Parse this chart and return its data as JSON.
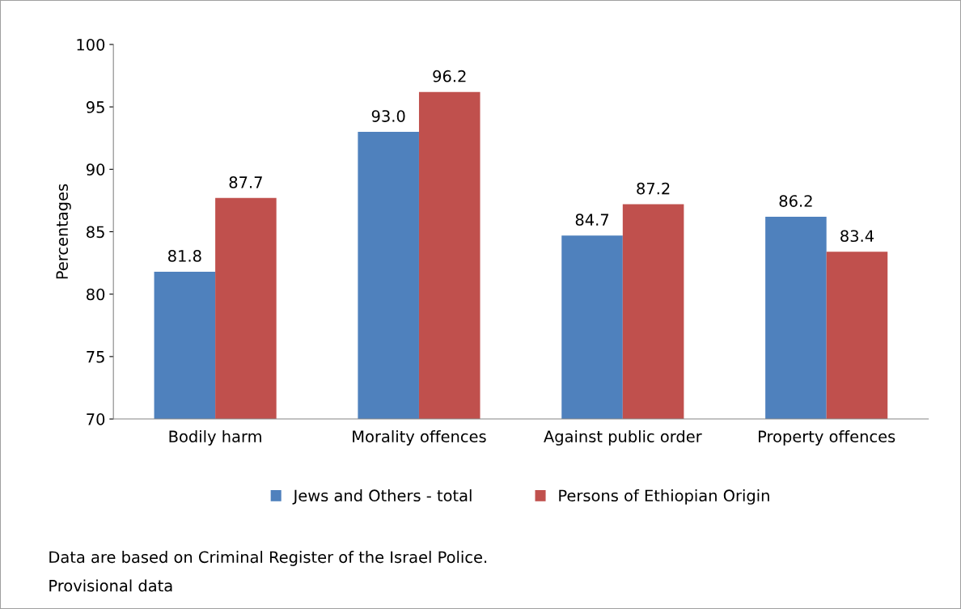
{
  "chart_data": {
    "type": "bar",
    "ylabel": "Percentages",
    "categories": [
      "Bodily harm",
      "Morality offences",
      "Against public order",
      "Property offences"
    ],
    "series": [
      {
        "name": "Jews and Others - total",
        "color": "#4f81bd",
        "values": [
          81.8,
          93.0,
          84.7,
          86.2
        ],
        "value_labels": [
          "81.8",
          "93.0",
          "84.7",
          "86.2"
        ]
      },
      {
        "name": "Persons of Ethiopian Origin",
        "color": "#c0504d",
        "values": [
          87.7,
          96.2,
          87.2,
          83.4
        ],
        "value_labels": [
          "87.7",
          "96.2",
          "87.2",
          "83.4"
        ]
      }
    ],
    "ylim": [
      70,
      100
    ],
    "yticks": [
      70,
      75,
      80,
      85,
      90,
      95,
      100
    ],
    "grid": false,
    "legend": "bottom",
    "annotations": [
      "Data are based on Criminal Register of the Israel Police.",
      "Provisional data"
    ]
  }
}
